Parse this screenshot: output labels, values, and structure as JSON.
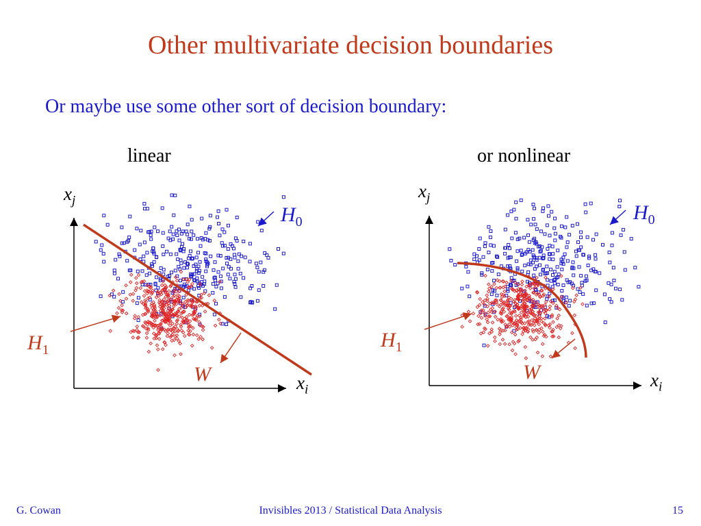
{
  "title": "Other multivariate decision boundaries",
  "subtitle": "Or maybe use some other sort of decision boundary:",
  "panels": {
    "left": {
      "label": "linear",
      "x_axis": "x",
      "x_sub": "i",
      "y_axis": "x",
      "y_sub": "j",
      "h0": "H",
      "h0_sub": "0",
      "h1": "H",
      "h1_sub": "1",
      "w": "W"
    },
    "right": {
      "label": "or nonlinear",
      "x_axis": "x",
      "x_sub": "i",
      "y_axis": "x",
      "y_sub": "j",
      "h0": "H",
      "h0_sub": "0",
      "h1": "H",
      "h1_sub": "1",
      "w": "W"
    }
  },
  "colors": {
    "title": "#c0391b",
    "subtitle": "#1a1acc",
    "h0_points": "#1a1acc",
    "h1_points": "#e02020",
    "boundary": "#c0391b"
  },
  "footer": {
    "author": "G. Cowan",
    "center": "Invisibles 2013 / Statistical Data Analysis",
    "page": "15"
  }
}
